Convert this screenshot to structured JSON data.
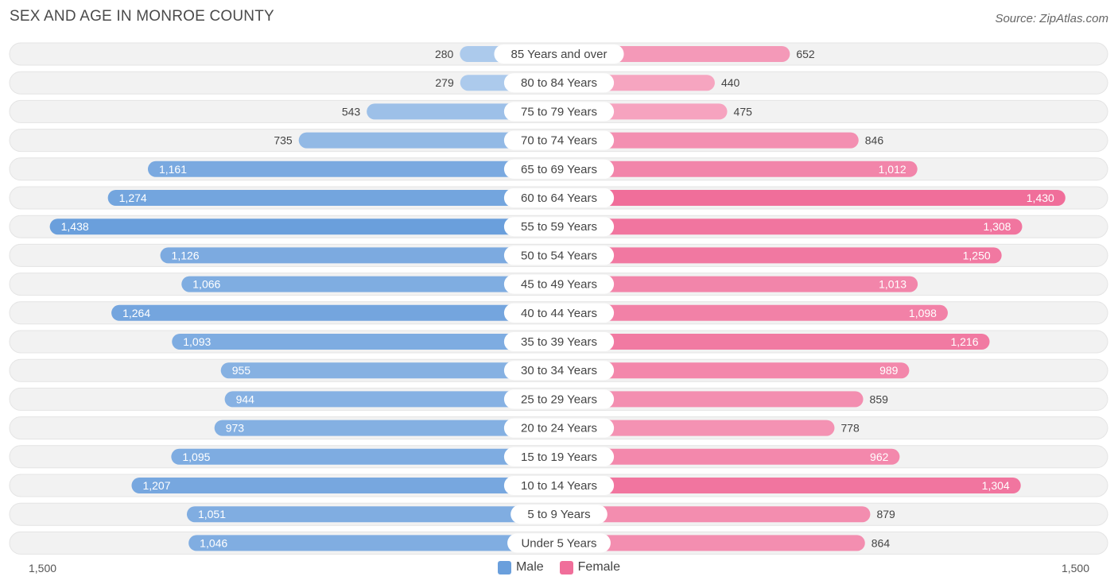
{
  "title": "SEX AND AGE IN MONROE COUNTY",
  "source": "Source: ZipAtlas.com",
  "colors": {
    "male": "#6a9fdc",
    "female": "#f06e9a",
    "row_bg": "#f2f2f2",
    "label_bg": "#ffffff"
  },
  "legend": {
    "male": "Male",
    "female": "Female"
  },
  "axis": {
    "left_label": "1,500",
    "right_label": "1,500"
  },
  "chart_data": {
    "type": "bar",
    "orientation": "horizontal-diverging",
    "xlim": [
      0,
      1500
    ],
    "categories": [
      "85 Years and over",
      "80 to 84 Years",
      "75 to 79 Years",
      "70 to 74 Years",
      "65 to 69 Years",
      "60 to 64 Years",
      "55 to 59 Years",
      "50 to 54 Years",
      "45 to 49 Years",
      "40 to 44 Years",
      "35 to 39 Years",
      "30 to 34 Years",
      "25 to 29 Years",
      "20 to 24 Years",
      "15 to 19 Years",
      "10 to 14 Years",
      "5 to 9 Years",
      "Under 5 Years"
    ],
    "series": [
      {
        "name": "Male",
        "values": [
          280,
          279,
          543,
          735,
          1161,
          1274,
          1438,
          1126,
          1066,
          1264,
          1093,
          955,
          944,
          973,
          1095,
          1207,
          1051,
          1046
        ],
        "labels": [
          "280",
          "279",
          "543",
          "735",
          "1,161",
          "1,274",
          "1,438",
          "1,126",
          "1,066",
          "1,264",
          "1,093",
          "955",
          "944",
          "973",
          "1,095",
          "1,207",
          "1,051",
          "1,046"
        ]
      },
      {
        "name": "Female",
        "values": [
          652,
          440,
          475,
          846,
          1012,
          1430,
          1308,
          1250,
          1013,
          1098,
          1216,
          989,
          859,
          778,
          962,
          1304,
          879,
          864
        ],
        "labels": [
          "652",
          "440",
          "475",
          "846",
          "1,012",
          "1,430",
          "1,308",
          "1,250",
          "1,013",
          "1,098",
          "1,216",
          "989",
          "859",
          "778",
          "962",
          "1,304",
          "879",
          "864"
        ]
      }
    ],
    "legend_position": "bottom-center"
  }
}
